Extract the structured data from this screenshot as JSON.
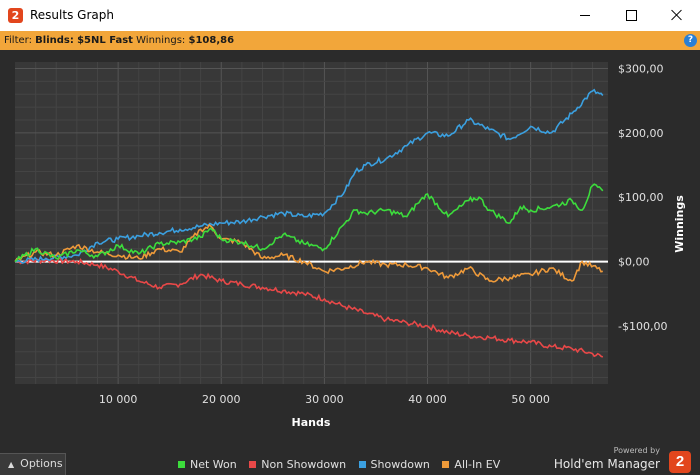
{
  "window": {
    "title": "Results Graph",
    "app_icon_text": "2"
  },
  "filter": {
    "prefix": "Filter:",
    "blinds_label": "Blinds:",
    "blinds_value": "$5NL Fast",
    "winnings_label": "Winnings:",
    "winnings_value": "$108,86",
    "help_icon": "?"
  },
  "chart_data": {
    "type": "line",
    "xlabel": "Hands",
    "ylabel": "Winnings",
    "xlim": [
      0,
      57500
    ],
    "ylim": [
      -190,
      310
    ],
    "x_ticks": [
      10000,
      20000,
      30000,
      40000,
      50000
    ],
    "x_tick_labels": [
      "10 000",
      "20 000",
      "30 000",
      "40 000",
      "50 000"
    ],
    "y_ticks": [
      300,
      200,
      100,
      0,
      -100
    ],
    "y_tick_labels": [
      "$300,00",
      "$200,00",
      "$100,00",
      "$0,00",
      "-$100,00"
    ],
    "grid": true,
    "legend": "bottom",
    "series": [
      {
        "name": "Net Won",
        "color": "#3cdc3c",
        "x": [
          0,
          2000,
          4000,
          6000,
          8000,
          10000,
          12000,
          14000,
          16000,
          18000,
          19000,
          20000,
          22000,
          24000,
          26000,
          28000,
          30000,
          32000,
          33000,
          34000,
          36000,
          38000,
          39000,
          40000,
          42000,
          44000,
          45000,
          46000,
          48000,
          49000,
          50000,
          52000,
          54000,
          55000,
          56000,
          57000
        ],
        "values": [
          0,
          20,
          5,
          18,
          8,
          25,
          12,
          28,
          30,
          38,
          52,
          35,
          30,
          20,
          42,
          28,
          20,
          60,
          80,
          75,
          80,
          70,
          90,
          105,
          70,
          95,
          100,
          80,
          60,
          85,
          80,
          85,
          95,
          80,
          118,
          110
        ]
      },
      {
        "name": "Non Showdown",
        "color": "#e84848",
        "x": [
          0,
          3000,
          6000,
          8000,
          10000,
          12000,
          14000,
          16000,
          18000,
          20000,
          22000,
          24000,
          26000,
          28000,
          30000,
          32000,
          34000,
          36000,
          38000,
          40000,
          42000,
          44000,
          46000,
          48000,
          50000,
          52000,
          54000,
          56000,
          57000
        ],
        "values": [
          0,
          2,
          0,
          -5,
          -15,
          -30,
          -40,
          -35,
          -20,
          -30,
          -35,
          -40,
          -45,
          -50,
          -58,
          -70,
          -80,
          -90,
          -95,
          -100,
          -110,
          -115,
          -118,
          -122,
          -125,
          -132,
          -135,
          -143,
          -148
        ]
      },
      {
        "name": "Showdown",
        "color": "#3ba0e0",
        "x": [
          0,
          3000,
          6000,
          8000,
          10000,
          12000,
          14000,
          16000,
          18000,
          20000,
          22000,
          24000,
          26000,
          28000,
          30000,
          32000,
          33000,
          34000,
          36000,
          38000,
          40000,
          42000,
          44000,
          46000,
          48000,
          50000,
          52000,
          54000,
          56000,
          57000
        ],
        "values": [
          0,
          5,
          10,
          30,
          35,
          40,
          45,
          50,
          55,
          60,
          62,
          70,
          75,
          70,
          75,
          110,
          140,
          150,
          160,
          180,
          200,
          195,
          220,
          205,
          190,
          210,
          200,
          230,
          265,
          258
        ]
      },
      {
        "name": "All-In EV",
        "color": "#ee9a3a",
        "x": [
          0,
          2000,
          4000,
          6000,
          8000,
          10000,
          12000,
          14000,
          16000,
          18000,
          19000,
          20000,
          22000,
          24000,
          26000,
          28000,
          30000,
          32000,
          34000,
          36000,
          38000,
          40000,
          42000,
          44000,
          46000,
          48000,
          50000,
          52000,
          54000,
          55000,
          57000
        ],
        "values": [
          0,
          15,
          10,
          25,
          15,
          10,
          5,
          20,
          15,
          50,
          55,
          35,
          30,
          5,
          10,
          0,
          -15,
          -10,
          0,
          -5,
          -5,
          -10,
          -25,
          -10,
          -30,
          -25,
          -20,
          -10,
          -30,
          0,
          -15
        ]
      }
    ]
  },
  "bottom": {
    "options_label": "Options",
    "brand_powered": "Powered by",
    "brand_name": "Hold'em Manager",
    "brand_logo_text": "2"
  }
}
